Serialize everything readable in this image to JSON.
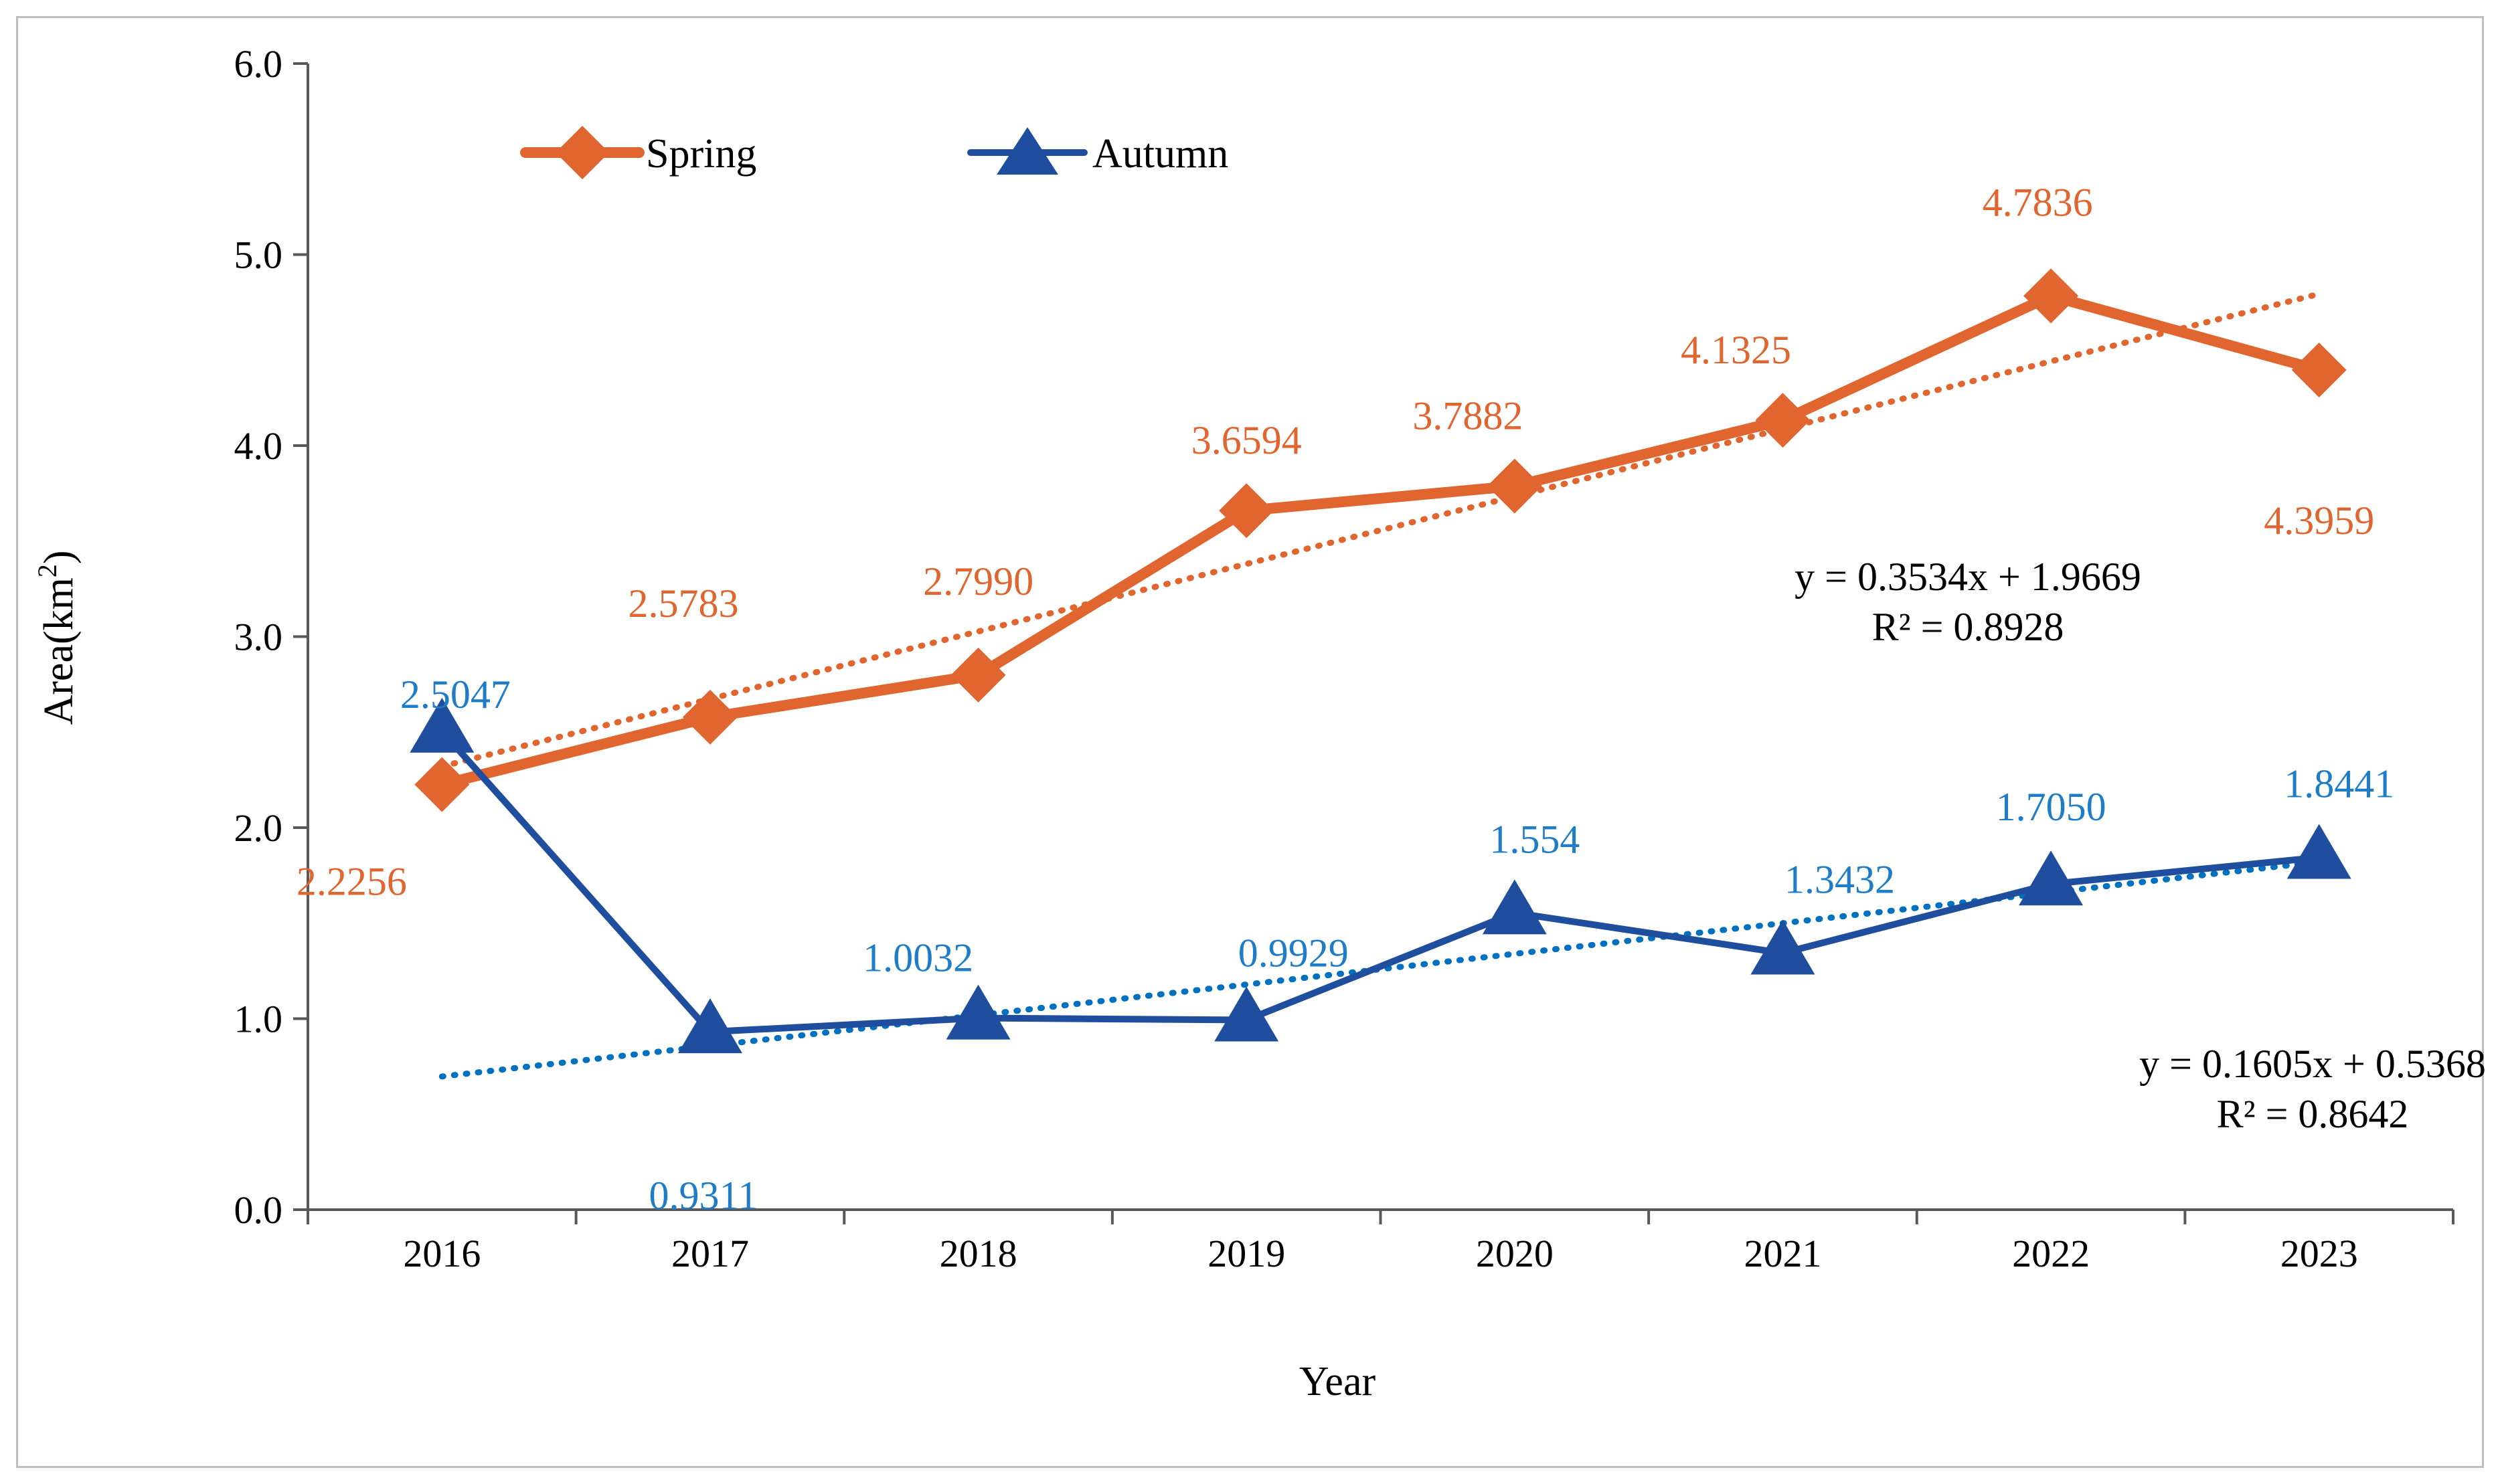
{
  "chart_data": {
    "type": "line",
    "title": "",
    "xlabel": "Year",
    "ylabel": "Area(km",
    "ylabel_sup": "2",
    "ylabel_close": ")",
    "ylim": [
      0,
      6
    ],
    "ytick_values": [
      0,
      1,
      2,
      3,
      4,
      5,
      6
    ],
    "ytick_labels": [
      "0.0",
      "1.0",
      "2.0",
      "3.0",
      "4.0",
      "5.0",
      "6.0"
    ],
    "categories": [
      "2016",
      "2017",
      "2018",
      "2019",
      "2020",
      "2021",
      "2022",
      "2023"
    ],
    "legend_position": "top-left",
    "series": [
      {
        "name": "Spring",
        "color": "#E0652F",
        "marker": "diamond",
        "values": [
          2.2256,
          2.5783,
          2.799,
          3.6594,
          3.7882,
          4.1325,
          4.7836,
          4.3959
        ],
        "labels": [
          "2.2256",
          "2.5783",
          "2.7990",
          "3.6594",
          "3.7882",
          "4.1325",
          "4.7836",
          "4.3959"
        ],
        "trendline": {
          "slope": 0.3534,
          "intercept": 1.9669,
          "equation": "y = 0.3534x + 1.9669",
          "r2": "R² = 0.8928"
        }
      },
      {
        "name": "Autumn",
        "color": "#1F4E9F",
        "label_color": "#1E7CC8",
        "trend_color": "#0070C0",
        "marker": "triangle",
        "values": [
          2.5047,
          0.9311,
          1.0032,
          0.9929,
          1.554,
          1.3432,
          1.705,
          1.8441
        ],
        "labels": [
          "2.5047",
          "0.9311",
          "1.0032",
          "0.9929",
          "1.554",
          "1.3432",
          "1.7050",
          "1.8441"
        ],
        "trendline": {
          "slope": 0.1605,
          "intercept": 0.5368,
          "equation": "y = 0.1605x + 0.5368",
          "r2": "R² = 0.8642"
        }
      }
    ]
  }
}
